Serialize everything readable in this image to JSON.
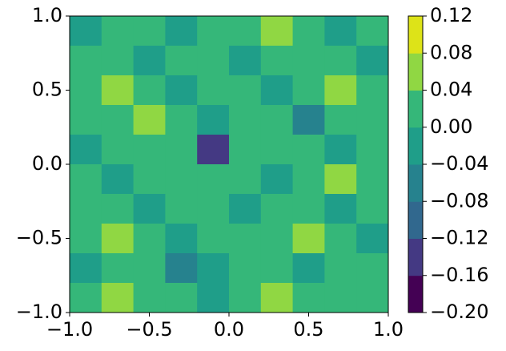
{
  "chart_data": {
    "type": "contour",
    "xlim": [
      -1.0,
      1.0
    ],
    "ylim": [
      -1.0,
      1.0
    ],
    "xticks": [
      {
        "value": -1.0,
        "label": "−1.0"
      },
      {
        "value": -0.5,
        "label": "−0.5"
      },
      {
        "value": 0,
        "label": "0.0"
      },
      {
        "value": 0.5,
        "label": "0.5"
      },
      {
        "value": 1.0,
        "label": "1.0"
      }
    ],
    "yticks": [
      {
        "value": -1.0,
        "label": "−1.0"
      },
      {
        "value": -0.5,
        "label": "−0.5"
      },
      {
        "value": 0,
        "label": "0.0"
      },
      {
        "value": 0.5,
        "label": "0.5"
      },
      {
        "value": 1.0,
        "label": "1.0"
      }
    ],
    "levels": [
      {
        "value": -0.2,
        "label": "−0.20"
      },
      {
        "value": -0.16,
        "label": "−0.16"
      },
      {
        "value": -0.12,
        "label": "−0.12"
      },
      {
        "value": -0.08,
        "label": "−0.08"
      },
      {
        "value": -0.04,
        "label": "−0.04"
      },
      {
        "value": 0,
        "label": "0.00"
      },
      {
        "value": 0.04,
        "label": "0.04"
      },
      {
        "value": 0.08,
        "label": "0.08"
      },
      {
        "value": 0.12,
        "label": "0.12"
      }
    ],
    "colors": [
      "#440154",
      "#443983",
      "#31688e",
      "#26828e",
      "#1f9e89",
      "#35b779",
      "#90d743",
      "#dde318"
    ],
    "z": [
      [
        -0.02,
        0.02,
        0.02,
        -0.02,
        0.02,
        0.02,
        0.06,
        0.02,
        -0.02,
        0.02
      ],
      [
        0.02,
        0.02,
        -0.02,
        0.02,
        0.02,
        -0.02,
        0.02,
        0.02,
        0.02,
        -0.02
      ],
      [
        0.02,
        0.06,
        0.02,
        -0.02,
        0.02,
        0.02,
        -0.02,
        0.02,
        0.06,
        0.02
      ],
      [
        0.02,
        0.02,
        0.06,
        0.02,
        -0.02,
        0.02,
        0.02,
        -0.06,
        0.02,
        0.02
      ],
      [
        -0.02,
        0.02,
        0.02,
        0.02,
        -0.14,
        0.02,
        0.02,
        0.02,
        -0.02,
        0.02
      ],
      [
        0.02,
        -0.02,
        0.02,
        0.02,
        0.02,
        0.02,
        -0.02,
        0.02,
        0.06,
        0.02
      ],
      [
        0.02,
        0.02,
        -0.02,
        0.02,
        0.02,
        -0.02,
        0.02,
        0.02,
        -0.02,
        0.02
      ],
      [
        0.02,
        0.06,
        0.02,
        -0.02,
        0.02,
        0.02,
        0.02,
        0.06,
        0.02,
        -0.02
      ],
      [
        -0.02,
        0.02,
        0.02,
        -0.06,
        -0.02,
        0.02,
        0.02,
        -0.02,
        0.02,
        0.02
      ],
      [
        0.02,
        0.06,
        0.02,
        0.02,
        -0.02,
        0.02,
        0.06,
        0.02,
        0.02,
        0.02
      ]
    ]
  }
}
